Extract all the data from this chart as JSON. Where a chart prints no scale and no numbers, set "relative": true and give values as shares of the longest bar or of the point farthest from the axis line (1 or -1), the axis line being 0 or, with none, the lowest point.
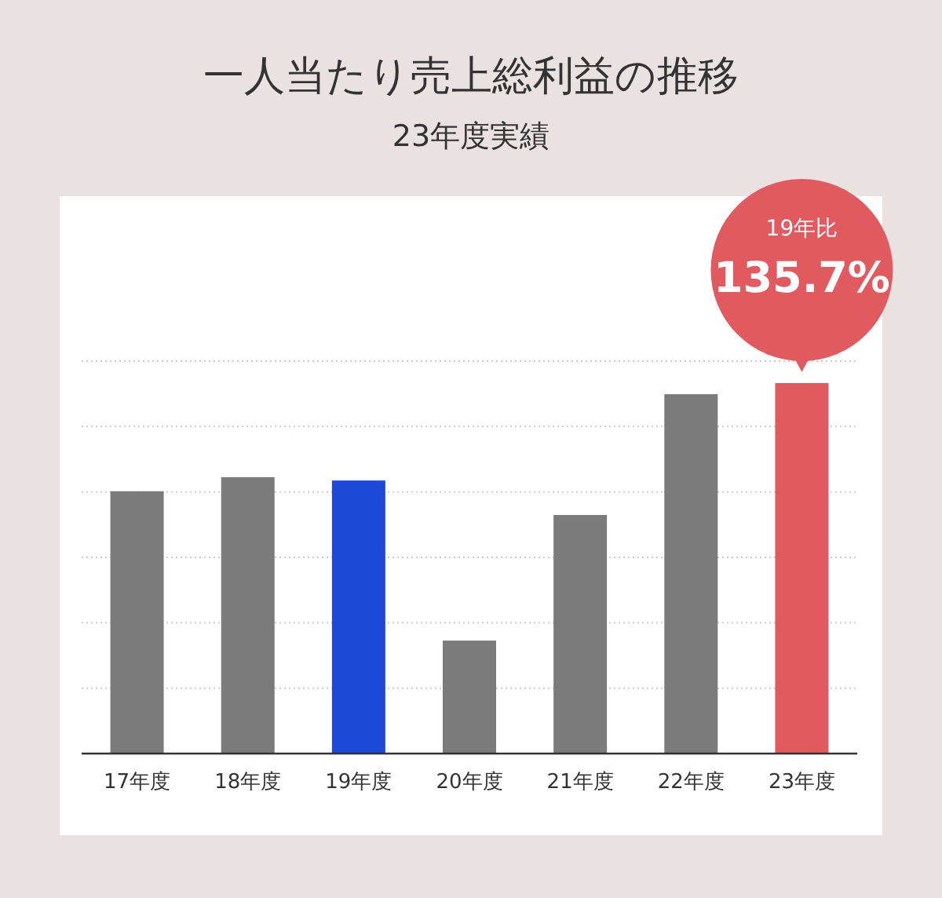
{
  "chart_data": {
    "type": "bar",
    "title": "一人当たり売上総利益の推移",
    "subtitle": "23年度実績",
    "categories": [
      "17年度",
      "18年度",
      "19年度",
      "20年度",
      "21年度",
      "22年度",
      "23年度"
    ],
    "values": [
      0.708,
      0.746,
      0.737,
      0.305,
      0.644,
      0.97,
      1
    ],
    "colors": [
      "#7b7b7b",
      "#7b7b7b",
      "#1d49d8",
      "#7b7b7b",
      "#7b7b7b",
      "#7b7b7b",
      "#e05a5f"
    ],
    "relative": true,
    "grid": "y",
    "annotations": [
      "19年比",
      "135.7%"
    ]
  }
}
